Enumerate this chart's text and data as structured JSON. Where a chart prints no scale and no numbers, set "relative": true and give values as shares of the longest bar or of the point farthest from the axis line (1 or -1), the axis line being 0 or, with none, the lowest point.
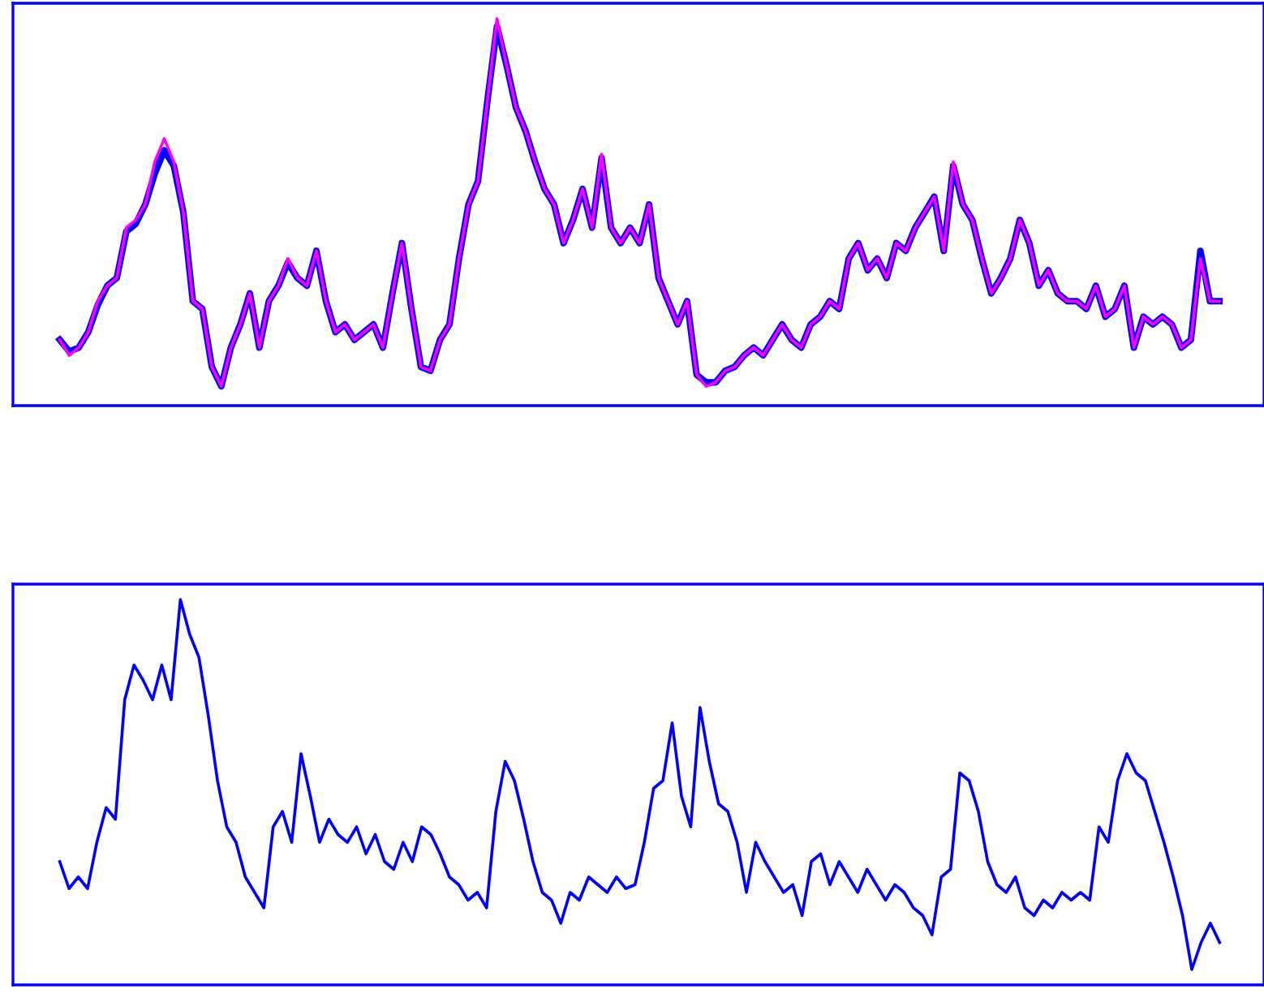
{
  "chart_data": [
    {
      "type": "line",
      "relative": true,
      "categories": [
        null,
        null,
        null,
        null,
        null,
        null,
        null,
        null,
        null,
        null,
        null,
        null,
        null,
        null,
        null,
        null,
        null,
        null,
        null,
        null,
        null,
        null,
        null,
        null,
        null,
        null,
        null,
        null,
        null,
        null,
        null,
        null,
        null,
        null,
        null,
        null,
        null,
        null,
        null,
        null,
        null,
        null,
        null,
        null,
        null,
        null,
        null,
        null,
        null,
        null,
        null,
        null,
        null,
        null,
        null,
        null,
        null,
        null,
        null,
        null,
        null,
        null,
        null,
        null,
        null,
        null,
        null,
        null,
        null,
        null,
        null,
        null,
        null,
        null,
        null,
        null,
        null,
        null,
        null,
        null,
        null,
        null,
        null,
        null,
        null,
        null,
        null,
        null,
        null,
        null,
        null,
        null,
        null,
        null,
        null,
        null,
        null,
        null,
        null,
        null,
        null,
        null,
        null,
        null,
        null,
        null,
        null,
        null,
        null,
        null,
        null,
        null,
        null,
        null,
        null,
        null,
        null,
        null,
        null,
        null,
        null,
        null,
        null
      ],
      "series": [
        {
          "color": "#0000ff",
          "values": [
            0.17,
            0.14,
            0.15,
            0.19,
            0.26,
            0.31,
            0.33,
            0.45,
            0.47,
            0.52,
            0.6,
            0.66,
            0.62,
            0.5,
            0.27,
            0.25,
            0.1,
            0.05,
            0.15,
            0.21,
            0.29,
            0.15,
            0.27,
            0.31,
            0.37,
            0.33,
            0.31,
            0.4,
            0.27,
            0.19,
            0.21,
            0.17,
            0.19,
            0.21,
            0.15,
            0.29,
            0.42,
            0.25,
            0.1,
            0.09,
            0.17,
            0.21,
            0.38,
            0.52,
            0.58,
            0.79,
            0.98,
            0.88,
            0.77,
            0.71,
            0.63,
            0.56,
            0.52,
            0.42,
            0.48,
            0.56,
            0.46,
            0.64,
            0.46,
            0.42,
            0.46,
            0.42,
            0.52,
            0.33,
            0.27,
            0.21,
            0.27,
            0.08,
            0.06,
            0.06,
            0.09,
            0.1,
            0.13,
            0.15,
            0.13,
            0.17,
            0.21,
            0.17,
            0.15,
            0.21,
            0.23,
            0.27,
            0.25,
            0.38,
            0.42,
            0.35,
            0.38,
            0.33,
            0.42,
            0.4,
            0.46,
            0.5,
            0.54,
            0.4,
            0.62,
            0.52,
            0.48,
            0.38,
            0.29,
            0.33,
            0.38,
            0.48,
            0.42,
            0.31,
            0.35,
            0.29,
            0.27,
            0.27,
            0.25,
            0.31,
            0.23,
            0.25,
            0.31,
            0.15,
            0.23,
            0.21,
            0.23,
            0.21,
            0.15,
            0.17,
            0.4,
            0.27,
            0.27
          ]
        },
        {
          "color": "#ff00ff",
          "values": [
            0.17,
            0.13,
            0.15,
            0.19,
            0.27,
            0.31,
            0.33,
            0.46,
            0.48,
            0.52,
            0.63,
            0.69,
            0.63,
            0.5,
            0.27,
            0.25,
            0.1,
            0.05,
            0.15,
            0.21,
            0.29,
            0.15,
            0.27,
            0.31,
            0.38,
            0.33,
            0.31,
            0.4,
            0.27,
            0.19,
            0.21,
            0.17,
            0.19,
            0.21,
            0.15,
            0.29,
            0.42,
            0.25,
            0.1,
            0.09,
            0.17,
            0.21,
            0.38,
            0.52,
            0.58,
            0.79,
            1.0,
            0.88,
            0.77,
            0.71,
            0.63,
            0.56,
            0.52,
            0.42,
            0.48,
            0.56,
            0.46,
            0.65,
            0.46,
            0.42,
            0.46,
            0.42,
            0.52,
            0.33,
            0.27,
            0.21,
            0.27,
            0.08,
            0.05,
            0.06,
            0.09,
            0.1,
            0.13,
            0.15,
            0.13,
            0.17,
            0.21,
            0.17,
            0.15,
            0.21,
            0.23,
            0.27,
            0.25,
            0.38,
            0.42,
            0.35,
            0.38,
            0.33,
            0.42,
            0.4,
            0.46,
            0.5,
            0.54,
            0.4,
            0.63,
            0.52,
            0.48,
            0.38,
            0.29,
            0.33,
            0.38,
            0.48,
            0.42,
            0.31,
            0.35,
            0.29,
            0.27,
            0.27,
            0.25,
            0.31,
            0.23,
            0.25,
            0.31,
            0.15,
            0.23,
            0.21,
            0.23,
            0.21,
            0.15,
            0.17,
            0.38,
            0.27,
            0.27
          ]
        }
      ]
    },
    {
      "type": "line",
      "relative": true,
      "categories": [
        null,
        null,
        null,
        null,
        null,
        null,
        null,
        null,
        null,
        null,
        null,
        null,
        null,
        null,
        null,
        null,
        null,
        null,
        null,
        null,
        null,
        null,
        null,
        null,
        null,
        null,
        null,
        null,
        null,
        null,
        null,
        null,
        null,
        null,
        null,
        null,
        null,
        null,
        null,
        null,
        null,
        null,
        null,
        null,
        null,
        null,
        null,
        null,
        null,
        null,
        null,
        null,
        null,
        null,
        null,
        null,
        null,
        null,
        null,
        null,
        null,
        null,
        null,
        null,
        null,
        null,
        null,
        null,
        null,
        null,
        null,
        null,
        null,
        null,
        null,
        null,
        null,
        null,
        null,
        null,
        null,
        null,
        null,
        null,
        null,
        null,
        null,
        null,
        null,
        null,
        null,
        null,
        null,
        null,
        null,
        null,
        null,
        null,
        null,
        null,
        null,
        null,
        null,
        null,
        null,
        null,
        null,
        null,
        null,
        null,
        null,
        null,
        null,
        null,
        null,
        null,
        null,
        null,
        null,
        null,
        null,
        null,
        null,
        null,
        null,
        null
      ],
      "series": [
        {
          "color": "#0000ff",
          "values": [
            0.32,
            0.25,
            0.28,
            0.25,
            0.37,
            0.46,
            0.43,
            0.74,
            0.83,
            0.79,
            0.74,
            0.83,
            0.74,
            1.0,
            0.91,
            0.85,
            0.7,
            0.53,
            0.41,
            0.37,
            0.28,
            0.24,
            0.2,
            0.41,
            0.45,
            0.37,
            0.6,
            0.49,
            0.37,
            0.43,
            0.39,
            0.37,
            0.41,
            0.34,
            0.39,
            0.32,
            0.3,
            0.37,
            0.32,
            0.41,
            0.39,
            0.34,
            0.28,
            0.26,
            0.22,
            0.24,
            0.2,
            0.45,
            0.58,
            0.53,
            0.43,
            0.32,
            0.24,
            0.22,
            0.16,
            0.24,
            0.22,
            0.28,
            0.26,
            0.24,
            0.28,
            0.25,
            0.26,
            0.37,
            0.51,
            0.53,
            0.68,
            0.49,
            0.41,
            0.72,
            0.58,
            0.47,
            0.45,
            0.37,
            0.24,
            0.37,
            0.32,
            0.28,
            0.24,
            0.26,
            0.18,
            0.32,
            0.34,
            0.26,
            0.32,
            0.28,
            0.24,
            0.3,
            0.26,
            0.22,
            0.26,
            0.24,
            0.2,
            0.18,
            0.13,
            0.28,
            0.3,
            0.55,
            0.53,
            0.45,
            0.32,
            0.26,
            0.24,
            0.28,
            0.2,
            0.18,
            0.22,
            0.2,
            0.24,
            0.22,
            0.24,
            0.22,
            0.41,
            0.37,
            0.53,
            0.6,
            0.55,
            0.53,
            0.45,
            0.37,
            0.28,
            0.18,
            0.04,
            0.11,
            0.16,
            0.11
          ]
        }
      ]
    }
  ]
}
